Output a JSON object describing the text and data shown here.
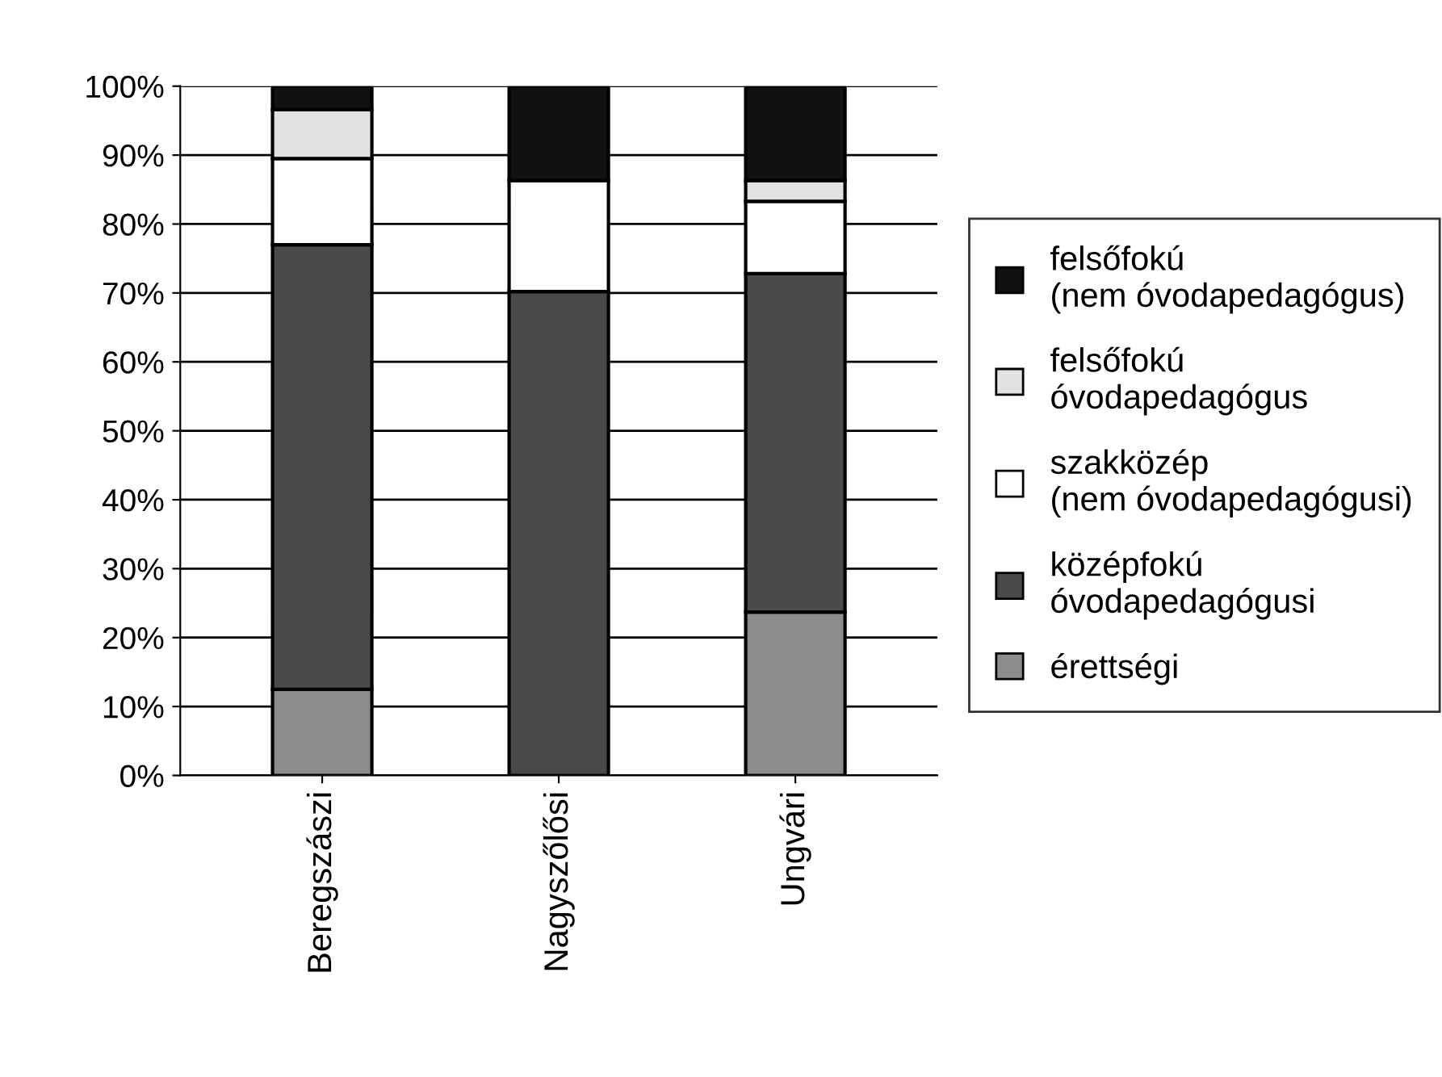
{
  "chart_data": {
    "type": "bar",
    "stacked": true,
    "categories": [
      "Beregszászi",
      "Nagyszőlősi",
      "Ungvári"
    ],
    "series": [
      {
        "name": "érettségi",
        "color": "#8c8c8c",
        "values": [
          12.5,
          0,
          23.7
        ]
      },
      {
        "name": "középfokú óvodapedagógusi",
        "color": "#4a4a4a",
        "values": [
          64.5,
          70.2,
          49.1
        ]
      },
      {
        "name": "szakközép (nem óvodapedagógusi)",
        "color": "#ffffff",
        "values": [
          12.5,
          16.1,
          10.5
        ]
      },
      {
        "name": "felsőfokú óvodapedagógus",
        "color": "#e2e2e2",
        "values": [
          7.1,
          0,
          3.0
        ]
      },
      {
        "name": "felsőfokú (nem óvodapedagógus)",
        "color": "#111111",
        "values": [
          3.4,
          13.7,
          13.7
        ]
      }
    ],
    "ylim": [
      0,
      100
    ],
    "yticks": [
      {
        "value": 0,
        "label": "0%"
      },
      {
        "value": 10,
        "label": "10%"
      },
      {
        "value": 20,
        "label": "20%"
      },
      {
        "value": 30,
        "label": "30%"
      },
      {
        "value": 40,
        "label": "40%"
      },
      {
        "value": 50,
        "label": "50%"
      },
      {
        "value": 60,
        "label": "60%"
      },
      {
        "value": 70,
        "label": "70%"
      },
      {
        "value": 80,
        "label": "80%"
      },
      {
        "value": 90,
        "label": "90%"
      },
      {
        "value": 100,
        "label": "100%"
      }
    ],
    "grid": "y",
    "legend": "right"
  }
}
